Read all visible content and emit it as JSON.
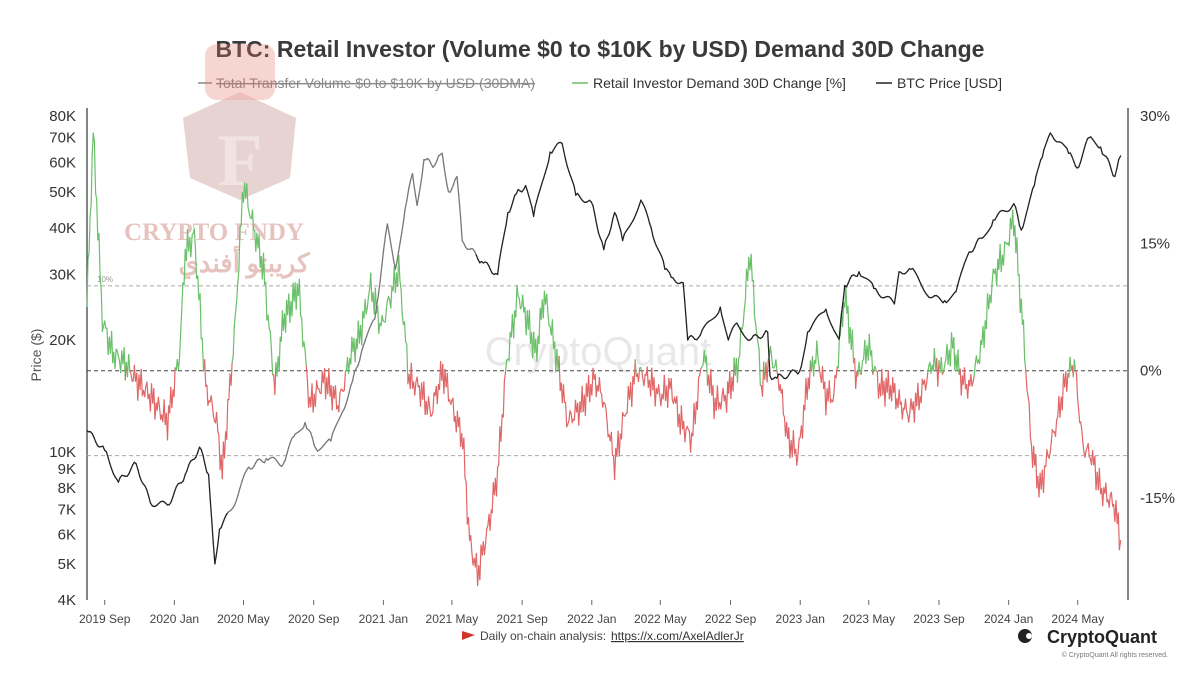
{
  "chart_data": {
    "type": "line",
    "title": "BTC: Retail Investor (Volume $0 to $10K by USD) Demand 30D Change",
    "legend": [
      {
        "name": "Total Transfer Volume $0 to $10K by USD (30DMA)",
        "color": "#888888",
        "disabled": true
      },
      {
        "name": "Retail Investor Demand 30D Change [%]",
        "color": "#6abf69"
      },
      {
        "name": "BTC Price [USD]",
        "color": "#222222"
      }
    ],
    "ylabel_left": "Price ($)",
    "left_axis": {
      "scale": "log",
      "range": [
        4000,
        80000
      ],
      "ticks": [
        "80K",
        "70K",
        "60K",
        "50K",
        "40K",
        "30K",
        "20K",
        "10K",
        "9K",
        "8K",
        "7K",
        "6K",
        "5K",
        "4K"
      ]
    },
    "right_axis": {
      "scale": "linear",
      "range": [
        -27,
        30
      ],
      "ticks": [
        "30%",
        "15%",
        "0%",
        "-15%"
      ],
      "reference_lines": [
        10,
        0,
        -10
      ],
      "reference_label": "10%"
    },
    "x_ticks": [
      "2019 Sep",
      "2020 Jan",
      "2020 May",
      "2020 Sep",
      "2021 Jan",
      "2021 May",
      "2021 Sep",
      "2022 Jan",
      "2022 May",
      "2022 Sep",
      "2023 Jan",
      "2023 May",
      "2023 Sep",
      "2024 Jan",
      "2024 May"
    ],
    "colors": {
      "positive": "#6abf69",
      "negative": "#e06666",
      "price": "#222222",
      "price_light": "#777777"
    },
    "btc_price": {
      "x": [
        "2019-08-01",
        "2019-09-01",
        "2019-09-25",
        "2019-10-26",
        "2019-11-20",
        "2019-12-20",
        "2020-01-20",
        "2020-02-14",
        "2020-03-01",
        "2020-03-12",
        "2020-03-20",
        "2020-04-10",
        "2020-05-10",
        "2020-06-10",
        "2020-07-10",
        "2020-07-28",
        "2020-08-17",
        "2020-09-05",
        "2020-10-01",
        "2020-10-21",
        "2020-11-08",
        "2020-11-24",
        "2020-12-17",
        "2021-01-08",
        "2021-01-22",
        "2021-02-08",
        "2021-02-21",
        "2021-03-01",
        "2021-03-13",
        "2021-04-01",
        "2021-04-14",
        "2021-04-25",
        "2021-05-10",
        "2021-05-19",
        "2021-06-22",
        "2021-07-20",
        "2021-08-07",
        "2021-08-22",
        "2021-09-07",
        "2021-09-21",
        "2021-10-20",
        "2021-11-10",
        "2021-12-04",
        "2021-12-31",
        "2022-01-22",
        "2022-02-10",
        "2022-02-24",
        "2022-03-28",
        "2022-04-15",
        "2022-05-09",
        "2022-05-20",
        "2022-06-10",
        "2022-06-18",
        "2022-07-10",
        "2022-08-14",
        "2022-08-28",
        "2022-09-12",
        "2022-10-05",
        "2022-11-05",
        "2022-11-09",
        "2022-11-21",
        "2022-12-31",
        "2023-01-14",
        "2023-02-15",
        "2023-03-10",
        "2023-03-20",
        "2023-04-14",
        "2023-05-10",
        "2023-06-15",
        "2023-06-23",
        "2023-07-14",
        "2023-08-18",
        "2023-09-11",
        "2023-10-01",
        "2023-10-24",
        "2023-11-15",
        "2023-12-05",
        "2024-01-10",
        "2024-01-23",
        "2024-02-15",
        "2024-02-29",
        "2024-03-14",
        "2024-04-01",
        "2024-04-15",
        "2024-04-30",
        "2024-05-21",
        "2024-06-10",
        "2024-07-05",
        "2024-07-15"
      ],
      "y": [
        11400,
        10100,
        8300,
        9300,
        7300,
        7200,
        8700,
        10300,
        8700,
        5000,
        6200,
        7000,
        9100,
        9600,
        9300,
        11000,
        12000,
        10200,
        10700,
        12800,
        15500,
        18700,
        22800,
        41000,
        31000,
        45000,
        56000,
        46000,
        61000,
        59000,
        63500,
        50000,
        55000,
        37000,
        32500,
        30000,
        44000,
        49500,
        52000,
        43000,
        64000,
        67500,
        49000,
        47000,
        35000,
        44000,
        37000,
        47500,
        40000,
        31000,
        29500,
        28500,
        20000,
        20600,
        24500,
        20000,
        22200,
        20000,
        21000,
        16000,
        15800,
        16500,
        21000,
        24200,
        20100,
        28000,
        30500,
        27500,
        25000,
        30500,
        31000,
        26000,
        25500,
        27000,
        34500,
        37500,
        42000,
        46500,
        39500,
        52000,
        62000,
        72000,
        68000,
        63500,
        58000,
        70000,
        66000,
        55000,
        62500
      ]
    },
    "demand_change": {
      "x": [
        "2019-08-01",
        "2019-08-12",
        "2019-08-28",
        "2019-09-15",
        "2019-10-05",
        "2019-10-25",
        "2019-11-20",
        "2019-12-20",
        "2020-01-10",
        "2020-01-20",
        "2020-02-05",
        "2020-02-25",
        "2020-03-15",
        "2020-03-25",
        "2020-04-15",
        "2020-05-01",
        "2020-05-15",
        "2020-06-05",
        "2020-06-25",
        "2020-07-10",
        "2020-07-25",
        "2020-08-05",
        "2020-08-25",
        "2020-09-20",
        "2020-10-15",
        "2020-11-05",
        "2020-11-20",
        "2020-12-10",
        "2020-12-28",
        "2021-01-10",
        "2021-01-28",
        "2021-02-15",
        "2021-03-05",
        "2021-03-25",
        "2021-04-15",
        "2021-05-05",
        "2021-05-20",
        "2021-06-01",
        "2021-06-15",
        "2021-07-05",
        "2021-07-20",
        "2021-08-05",
        "2021-08-25",
        "2021-09-10",
        "2021-09-25",
        "2021-10-10",
        "2021-10-30",
        "2021-11-20",
        "2021-12-15",
        "2022-01-05",
        "2022-01-20",
        "2022-02-10",
        "2022-02-28",
        "2022-03-20",
        "2022-04-10",
        "2022-04-30",
        "2022-05-20",
        "2022-06-05",
        "2022-06-25",
        "2022-07-15",
        "2022-08-05",
        "2022-08-25",
        "2022-09-15",
        "2022-10-05",
        "2022-10-25",
        "2022-11-10",
        "2022-11-25",
        "2022-12-10",
        "2022-12-28",
        "2023-01-15",
        "2023-01-30",
        "2023-02-15",
        "2023-03-01",
        "2023-03-20",
        "2023-04-10",
        "2023-04-30",
        "2023-05-20",
        "2023-06-10",
        "2023-06-25",
        "2023-07-10",
        "2023-07-30",
        "2023-08-20",
        "2023-09-05",
        "2023-09-25",
        "2023-10-10",
        "2023-10-25",
        "2023-11-15",
        "2023-12-05",
        "2023-12-25",
        "2024-01-10",
        "2024-01-25",
        "2024-02-10",
        "2024-02-25",
        "2024-03-10",
        "2024-03-25",
        "2024-04-10",
        "2024-04-25",
        "2024-05-10",
        "2024-05-25",
        "2024-06-10",
        "2024-06-25",
        "2024-07-05",
        "2024-07-15"
      ],
      "y": [
        8,
        28,
        6,
        2,
        1,
        -1,
        -3,
        -6,
        2,
        14,
        16,
        -2,
        -6,
        -12,
        4,
        22,
        18,
        12,
        -2,
        6,
        8,
        10,
        -4,
        -1,
        -4,
        2,
        4,
        10,
        5,
        8,
        12,
        -1,
        -2,
        -5,
        0,
        -5,
        -8,
        -20,
        -24,
        -18,
        -12,
        1,
        9,
        6,
        2,
        9,
        2,
        -6,
        -4,
        -1,
        -3,
        -11,
        -5,
        0,
        -1,
        -3,
        -2,
        -6,
        -8,
        2,
        -4,
        -3,
        1,
        14,
        -2,
        2,
        -1,
        -8,
        -10,
        -1,
        2,
        -3,
        -3,
        9,
        -1,
        3,
        -2,
        -2,
        -4,
        -5,
        -3,
        1,
        0,
        3,
        -1,
        -2,
        3,
        11,
        14,
        18,
        6,
        -9,
        -14,
        -10,
        -6,
        -1,
        1,
        -9,
        -10,
        -14,
        -15,
        -16,
        -20
      ]
    }
  },
  "footer": {
    "analysis_label": "Daily on-chain analysis:",
    "analysis_link": "https://x.com/AxelAdlerJr",
    "brand": "CryptoQuant",
    "rights": "© CryptoQuant All rights reserved."
  },
  "watermark": {
    "main": "CryptoQuant",
    "logo_letter": "F",
    "logo_name": "CRYPTO FNDY",
    "logo_arabic": "كريبتو أفندي"
  }
}
